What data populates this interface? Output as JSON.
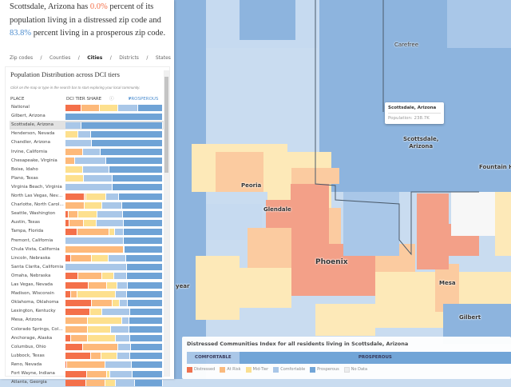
{
  "headline": {
    "prefix": "Scottsdale, Arizona has ",
    "distressed_pct": "0.0%",
    "middle": " percent of its population living in a distressed zip code and ",
    "prosperous_pct": "83.8%",
    "suffix": " percent living in a prosperous zip code."
  },
  "nav": [
    "Zip codes",
    "/",
    "Counties",
    "/",
    "Cities",
    "/",
    "Districts",
    "/",
    "States"
  ],
  "nav_active": "Cities",
  "section": {
    "title": "Population Distribution across DCI tiers",
    "hint": "Click on the map or type in the search bar to start exploring your local community.",
    "col_place": "PLACE",
    "col_share": "DCI TIER SHARE",
    "info_icon": "info-icon",
    "sort_label": "PROSPEROUS",
    "sort_icon": "caret-down-icon"
  },
  "colors": {
    "distressed": "#f4704a",
    "at_risk": "#fdb97a",
    "mid_tier": "#fde08e",
    "comfortable": "#a9c7e8",
    "prosperous": "#6fa3d6"
  },
  "selected_place": "Scottsdale, Arizona",
  "rows": [
    {
      "place": "National",
      "shares": [
        16,
        19,
        19,
        21,
        25
      ]
    },
    {
      "place": "Gilbert, Arizona",
      "shares": [
        0,
        0,
        0,
        0,
        100
      ]
    },
    {
      "place": "Scottsdale, Arizona",
      "shares": [
        0,
        0,
        0,
        16.2,
        83.8
      ]
    },
    {
      "place": "Henderson, Nevada",
      "shares": [
        0,
        0,
        13,
        13,
        74
      ]
    },
    {
      "place": "Chandler, Arizona",
      "shares": [
        0,
        0,
        0,
        27,
        73
      ]
    },
    {
      "place": "Irvine, California",
      "shares": [
        0,
        18,
        0,
        18,
        64
      ]
    },
    {
      "place": "Chesapeake, Virginia",
      "shares": [
        0,
        10,
        0,
        32,
        58
      ]
    },
    {
      "place": "Boise, Idaho",
      "shares": [
        0,
        0,
        18,
        27,
        55
      ]
    },
    {
      "place": "Plano, Texas",
      "shares": [
        0,
        0,
        19,
        29,
        52
      ]
    },
    {
      "place": "Virginia Beach, Virginia",
      "shares": [
        0,
        0,
        0,
        48,
        52
      ]
    },
    {
      "place": "North Las Vegas, Nevada",
      "shares": [
        20,
        1,
        21,
        13,
        45
      ]
    },
    {
      "place": "Charlotte, North Carolina",
      "shares": [
        0,
        20,
        18,
        20,
        42
      ]
    },
    {
      "place": "Seattle, Washington",
      "shares": [
        3,
        10,
        20,
        26,
        41
      ]
    },
    {
      "place": "Austin, Texas",
      "shares": [
        4,
        15,
        13,
        28,
        40
      ]
    },
    {
      "place": "Tampa, Florida",
      "shares": [
        12,
        33,
        6,
        9,
        40
      ]
    },
    {
      "place": "Fremont, California",
      "shares": [
        0,
        0,
        0,
        60,
        40
      ]
    },
    {
      "place": "Chula Vista, California",
      "shares": [
        0,
        60,
        0,
        1,
        39
      ]
    },
    {
      "place": "Lincoln, Nebraska",
      "shares": [
        6,
        21,
        17,
        18,
        38
      ]
    },
    {
      "place": "Santa Clarita, California",
      "shares": [
        0,
        0,
        0,
        63,
        37
      ]
    },
    {
      "place": "Omaha, Nebraska",
      "shares": [
        13,
        25,
        12,
        13,
        37
      ]
    },
    {
      "place": "Las Vegas, Nevada",
      "shares": [
        24,
        19,
        10,
        11,
        36
      ]
    },
    {
      "place": "Madison, Wisconsin",
      "shares": [
        6,
        6,
        40,
        11,
        37
      ]
    },
    {
      "place": "Oklahoma, Oklahoma",
      "shares": [
        27,
        21,
        8,
        8,
        36
      ]
    },
    {
      "place": "Lexington, Kentucky",
      "shares": [
        25,
        0,
        13,
        28,
        34
      ]
    },
    {
      "place": "Mesa, Arizona",
      "shares": [
        0,
        23,
        35,
        8,
        34
      ]
    },
    {
      "place": "Colorado Springs, Color...",
      "shares": [
        0,
        23,
        24,
        19,
        34
      ]
    },
    {
      "place": "Anchorage, Alaska",
      "shares": [
        6,
        17,
        29,
        14,
        34
      ]
    },
    {
      "place": "Columbus, Ohio",
      "shares": [
        18,
        36,
        0,
        13,
        33
      ]
    },
    {
      "place": "Lubbock, Texas",
      "shares": [
        26,
        11,
        16,
        13,
        34
      ]
    },
    {
      "place": "Reno, Nevada",
      "shares": [
        2,
        39,
        0,
        27,
        32
      ]
    },
    {
      "place": "Fort Wayne, Indiana",
      "shares": [
        22,
        21,
        3,
        23,
        31
      ]
    },
    {
      "place": "Atlanta, Georgia",
      "shares": [
        21,
        20,
        11,
        19,
        29
      ]
    }
  ],
  "map": {
    "labels": {
      "carefree": "Carefree",
      "scottsdale": "Scottsdale,\nArizona",
      "fountain": "Fountain Hi",
      "peoria": "Peoria",
      "glendale": "Glendale",
      "phoenix": "Phoenix",
      "mesa": "Mesa",
      "gilbert": "Gilbert",
      "goodyear": "year"
    },
    "tooltip": {
      "title": "Scottsdale, Arizona",
      "population": "Population: 238.7K"
    }
  },
  "legend": {
    "title": "Distressed Communities Index for all residents living in Scottsdale, Arizona",
    "tiers": [
      {
        "label": "COMFORTABLE",
        "share": 16.2
      },
      {
        "label": "PROSPEROUS",
        "share": 83.8
      }
    ],
    "items": [
      "Distressed",
      "At Risk",
      "Mid-Tier",
      "Comfortable",
      "Prosperous",
      "No Data"
    ]
  }
}
